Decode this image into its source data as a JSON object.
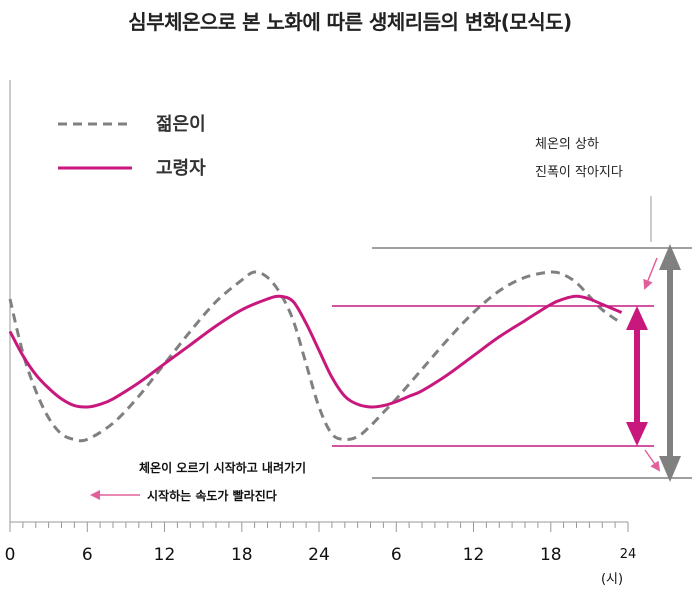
{
  "chart_data": {
    "type": "line",
    "title": "심부체온으로 본 노화에 따른 생체리듬의 변화(모식도)",
    "x_ticks": [
      "0",
      "6",
      "12",
      "18",
      "24",
      "6",
      "12",
      "18",
      "24"
    ],
    "x_unit": "(시)",
    "xlim": [
      0,
      48
    ],
    "ylim": [
      0,
      10
    ],
    "series": [
      {
        "name": "젊은이",
        "style": "dashed",
        "color": "#808080",
        "x": [
          0,
          1,
          2,
          3,
          4,
          5,
          6,
          8,
          10,
          12,
          14,
          16,
          18,
          19,
          20,
          21,
          22,
          23,
          24,
          25,
          26,
          27,
          28,
          29,
          30,
          32,
          34,
          36,
          38,
          40,
          42,
          43,
          44,
          45,
          46,
          47.5
        ],
        "y": [
          7.0,
          5.0,
          3.6,
          2.6,
          2.0,
          1.8,
          1.8,
          2.4,
          3.4,
          4.6,
          5.8,
          6.9,
          7.7,
          8.0,
          7.8,
          7.2,
          6.2,
          4.6,
          3.0,
          2.0,
          1.8,
          1.9,
          2.3,
          2.8,
          3.3,
          4.4,
          5.5,
          6.5,
          7.3,
          7.8,
          8.0,
          7.9,
          7.6,
          7.1,
          6.6,
          6.1
        ]
      },
      {
        "name": "고령자",
        "style": "solid",
        "color": "#c8187e",
        "x": [
          0,
          1,
          2,
          3,
          4,
          5,
          6,
          7,
          8,
          10,
          12,
          14,
          16,
          18,
          20,
          21,
          22,
          23,
          24,
          25,
          26,
          27,
          28,
          29,
          30,
          31,
          32,
          34,
          36,
          38,
          40,
          42,
          43,
          44,
          45,
          46,
          47.5
        ],
        "y": [
          5.8,
          4.9,
          4.2,
          3.7,
          3.3,
          3.05,
          3.0,
          3.1,
          3.3,
          3.9,
          4.6,
          5.3,
          6.0,
          6.6,
          7.0,
          7.1,
          6.9,
          6.1,
          5.1,
          4.1,
          3.4,
          3.1,
          3.0,
          3.05,
          3.2,
          3.4,
          3.6,
          4.2,
          4.9,
          5.6,
          6.2,
          6.8,
          7.0,
          7.1,
          7.0,
          6.8,
          6.5
        ]
      }
    ],
    "annotations": {
      "amplitude_line1": "체온의 상하",
      "amplitude_line2": "진폭이 작아지다",
      "onset_line1": "체온이 오르기 시작하고 내려가기",
      "onset_line2": "시작하는 속도가 빨라진다"
    },
    "colors": {
      "young": "#808080",
      "elderly": "#c8187e",
      "amp_arrow": "#808080",
      "amp_arrow_small": "#e0609a"
    }
  }
}
